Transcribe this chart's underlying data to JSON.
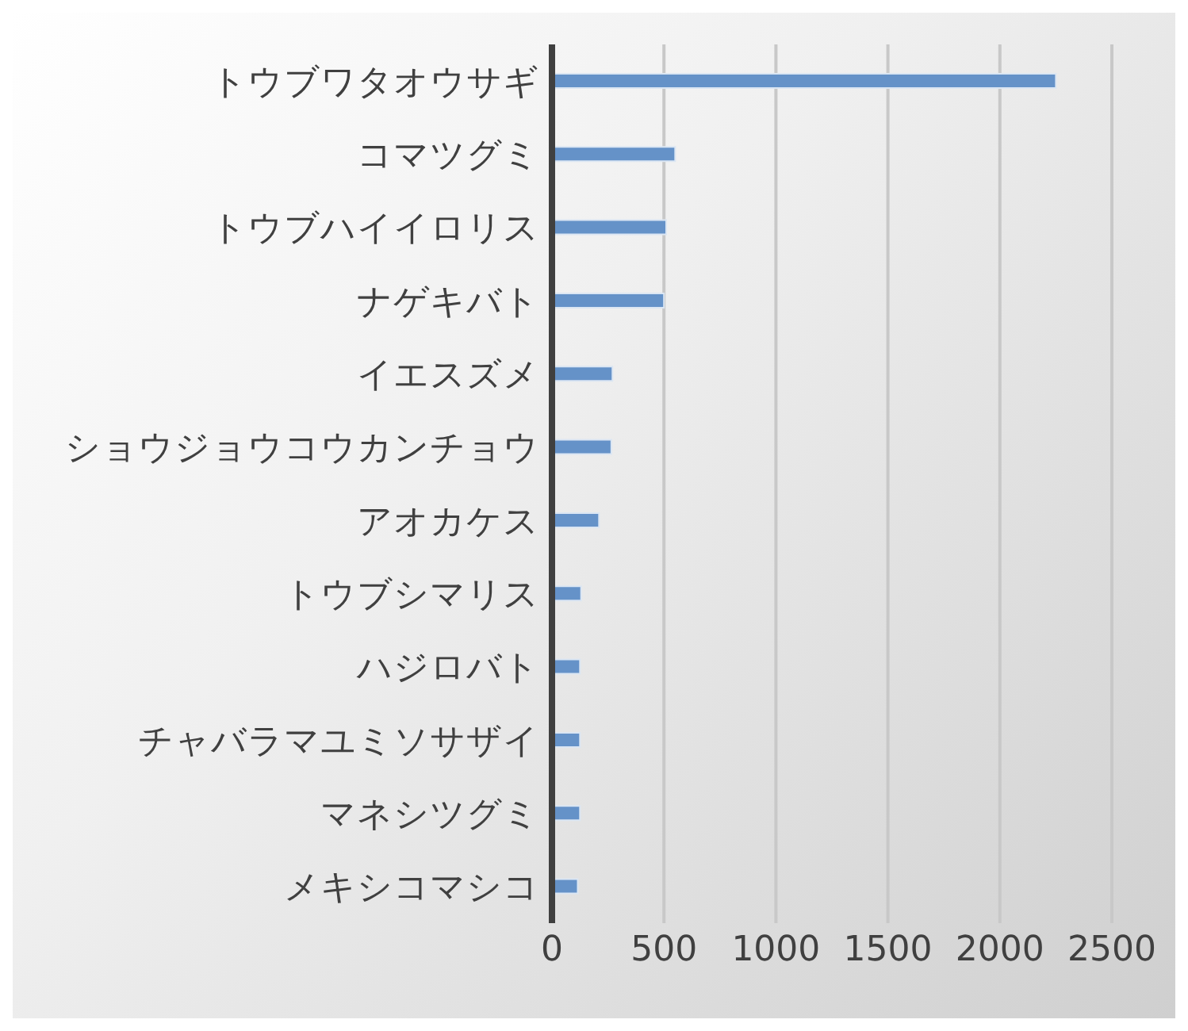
{
  "chart_data": {
    "type": "bar",
    "orientation": "horizontal",
    "categories": [
      "トウブワタオウサギ",
      "コマツグミ",
      "トウブハイイロリス",
      "ナゲキバト",
      "イエスズメ",
      "ショウジョウコウカンチョウ",
      "アオカケス",
      "トウブシマリス",
      "ハジロバト",
      "チャバラマユミソサザイ",
      "マネシツグミ",
      "メキシコマシコ"
    ],
    "values": [
      2250,
      550,
      510,
      500,
      270,
      265,
      210,
      130,
      125,
      125,
      125,
      115
    ],
    "color": "#6592c8",
    "xlim": [
      0,
      2500
    ],
    "xticks": [
      0,
      500,
      1000,
      1500,
      2000,
      2500
    ],
    "grid": "x"
  }
}
